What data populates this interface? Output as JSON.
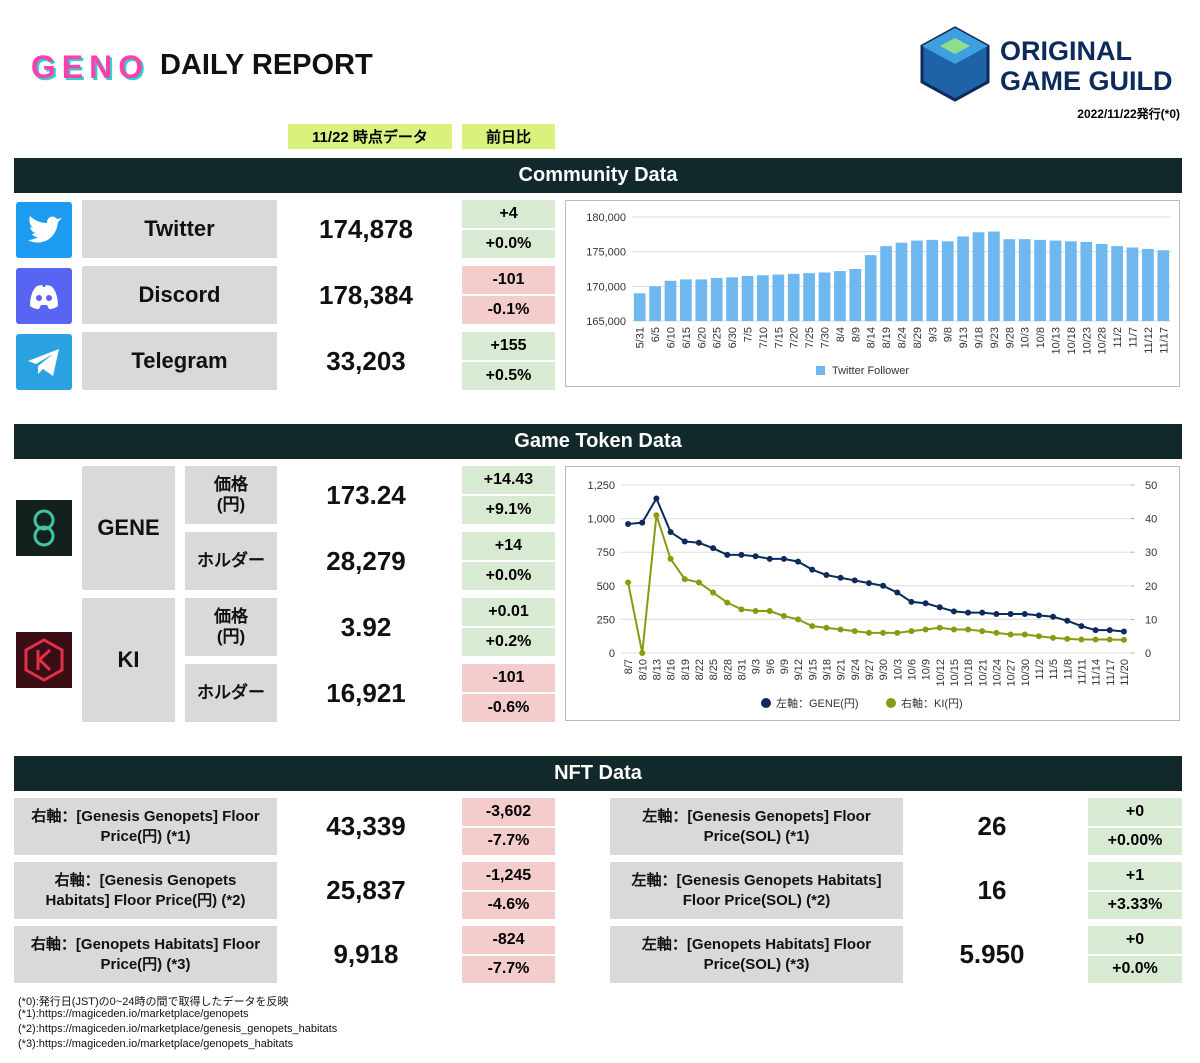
{
  "header": {
    "logo": "GENO",
    "title": "DAILY REPORT",
    "brand_line1": "ORIGINAL",
    "brand_line2": "GAME GUILD",
    "issued": "2022/11/22発行(*0)"
  },
  "column_headers": [
    "11/22 時点データ",
    "前日比"
  ],
  "community": {
    "title": "Community Data",
    "rows": [
      {
        "label": "Twitter",
        "value": "174,878",
        "change": "+4",
        "change_pct": "+0.0%"
      },
      {
        "label": "Discord",
        "value": "178,384",
        "change": "-101",
        "change_pct": "-0.1%"
      },
      {
        "label": "Telegram",
        "value": "33,203",
        "change": "+155",
        "change_pct": "+0.5%"
      }
    ],
    "chart": {
      "type": "bar",
      "categories": [
        "5/31",
        "6/5",
        "6/10",
        "6/15",
        "6/20",
        "6/25",
        "6/30",
        "7/5",
        "7/10",
        "7/15",
        "7/20",
        "7/25",
        "7/30",
        "8/4",
        "8/9",
        "8/14",
        "8/19",
        "8/24",
        "8/29",
        "9/3",
        "9/8",
        "9/13",
        "9/18",
        "9/23",
        "9/28",
        "10/3",
        "10/8",
        "10/13",
        "10/18",
        "10/23",
        "10/28",
        "11/2",
        "11/7",
        "11/12",
        "11/17"
      ],
      "series": [
        {
          "name": "Twitter Follower",
          "color": "#6fb7ef",
          "values": [
            169000,
            170000,
            170800,
            171000,
            171000,
            171200,
            171300,
            171500,
            171600,
            171700,
            171800,
            171900,
            172000,
            172200,
            172500,
            174500,
            175800,
            176300,
            176600,
            176700,
            176500,
            177200,
            177800,
            177900,
            176800,
            176800,
            176700,
            176600,
            176500,
            176400,
            176100,
            175800,
            175600,
            175400,
            175200
          ]
        }
      ],
      "ylim": [
        165000,
        180000
      ],
      "yticks": [
        {
          "value": 165000,
          "label": "165,000"
        },
        {
          "value": 170000,
          "label": "170,000"
        },
        {
          "value": 175000,
          "label": "175,000"
        },
        {
          "value": 180000,
          "label": "180,000"
        }
      ],
      "grid": true,
      "legend": "bottom"
    }
  },
  "token": {
    "title": "Game Token Data",
    "tokens": [
      {
        "name": "GENE",
        "rows": [
          {
            "label": "価格\n(円)",
            "value": "173.24",
            "change": "+14.43",
            "change_pct": "+9.1%"
          },
          {
            "label": "ホルダー",
            "value": "28,279",
            "change": "+14",
            "change_pct": "+0.0%"
          }
        ]
      },
      {
        "name": "KI",
        "rows": [
          {
            "label": "価格\n(円)",
            "value": "3.92",
            "change": "+0.01",
            "change_pct": "+0.2%"
          },
          {
            "label": "ホルダー",
            "value": "16,921",
            "change": "-101",
            "change_pct": "-0.6%"
          }
        ]
      }
    ],
    "chart": {
      "type": "line",
      "categories": [
        "8/7",
        "8/10",
        "8/13",
        "8/16",
        "8/19",
        "8/22",
        "8/25",
        "8/28",
        "8/31",
        "9/3",
        "9/6",
        "9/9",
        "9/12",
        "9/15",
        "9/18",
        "9/21",
        "9/24",
        "9/27",
        "9/30",
        "10/3",
        "10/6",
        "10/9",
        "10/12",
        "10/15",
        "10/18",
        "10/21",
        "10/24",
        "10/27",
        "10/30",
        "11/2",
        "11/5",
        "11/8",
        "11/11",
        "11/14",
        "11/17",
        "11/20"
      ],
      "series": [
        {
          "name": "左軸：GENE(円)",
          "color": "#0d2a5c",
          "values": [
            960,
            970,
            1150,
            900,
            830,
            820,
            780,
            730,
            730,
            720,
            700,
            700,
            680,
            620,
            580,
            560,
            540,
            520,
            500,
            450,
            380,
            370,
            340,
            310,
            300,
            300,
            290,
            290,
            290,
            280,
            270,
            240,
            200,
            170,
            170,
            160
          ]
        },
        {
          "name": "右軸：KI(円)",
          "color": "#8a9a10",
          "axis": "y2",
          "values": [
            21,
            0,
            41,
            28,
            22,
            21,
            18,
            15,
            13,
            12.5,
            12.5,
            11,
            10,
            8,
            7.5,
            7,
            6.5,
            6,
            6,
            6,
            6.5,
            7,
            7.5,
            7,
            7,
            6.5,
            6,
            5.5,
            5.5,
            5,
            4.5,
            4.2,
            4,
            4,
            4,
            3.9
          ]
        }
      ],
      "ylim": [
        0,
        1250
      ],
      "yticks": [
        0,
        {
          "value": 250,
          "label": "250"
        },
        500,
        750,
        {
          "value": 1000,
          "label": "1,000"
        },
        {
          "value": 1250,
          "label": "1,250"
        }
      ],
      "y2lim": [
        0,
        50
      ],
      "y2ticks": [
        0,
        10,
        20,
        30,
        40,
        50
      ],
      "grid": true,
      "legend": "bottom"
    }
  },
  "nft": {
    "title": "NFT Data",
    "rows": [
      [
        {
          "label": "右軸：[Genesis Genopets] Floor Price(円) (*1)",
          "value": "43,339",
          "change": "-3,602",
          "change_pct": "-7.7%"
        },
        {
          "label": "左軸：[Genesis Genopets] Floor Price(SOL) (*1)",
          "value": "26",
          "change": "+0",
          "change_pct": "+0.00%"
        }
      ],
      [
        {
          "label": "右軸：[Genesis Genopets Habitats] Floor Price(円) (*2)",
          "value": "25,837",
          "change": "-1,245",
          "change_pct": "-4.6%"
        },
        {
          "label": "左軸：[Genesis Genopets Habitats] Floor Price(SOL) (*2)",
          "value": "16",
          "change": "+1",
          "change_pct": "+3.33%"
        }
      ],
      [
        {
          "label": "右軸：[Genopets Habitats] Floor Price(円) (*3)",
          "value": "9,918",
          "change": "-824",
          "change_pct": "-7.7%"
        },
        {
          "label": "左軸：[Genopets Habitats] Floor Price(SOL) (*3)",
          "value": "5.950",
          "change": "+0",
          "change_pct": "+0.0%"
        }
      ]
    ]
  },
  "footnotes": [
    "(*0):発行日(JST)の0~24時の間で取得したデータを反映",
    "(*1):https://magiceden.io/marketplace/genopets",
    "(*2):https://magiceden.io/marketplace/genesis_genopets_habitats",
    "(*3):https://magiceden.io/marketplace/genopets_habitats"
  ]
}
